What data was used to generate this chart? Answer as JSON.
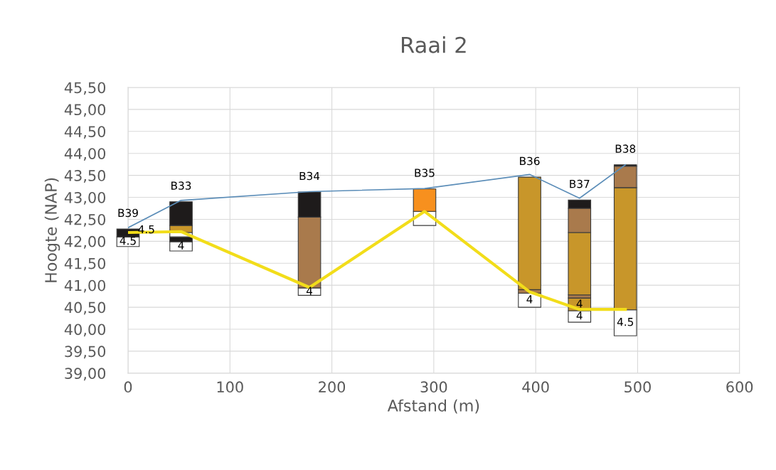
{
  "chart_data": {
    "type": "bar",
    "title": "Raai 2",
    "xlabel": "Afstand (m)",
    "ylabel": "Hoogte (NAP)",
    "x": [
      0,
      52,
      178,
      291,
      394,
      443,
      488
    ],
    "series": [
      {
        "base": [
          41.88,
          41.78,
          40.77,
          42.36,
          40.5,
          40.16,
          39.85
        ],
        "values": [
          0.22,
          0.21,
          0.17,
          0.32,
          0.32,
          0.26,
          0.59
        ],
        "colors": [
          "#ffffff",
          "#ffffff",
          "#ffffff",
          "#ffffff",
          "#ffffff",
          "#ffffff",
          "#ffffff"
        ]
      },
      {
        "base": [
          42.1,
          41.99,
          40.94,
          42.68,
          40.82,
          40.42,
          40.44
        ],
        "values": [
          0.18,
          0.11,
          1.61,
          0.51,
          0.08,
          0.29,
          2.78
        ],
        "colors": [
          "#1e1b1b",
          "#1e1b1b",
          "#a97a4c",
          "#f7901e",
          "#a97a4c",
          "#c8962a",
          "#c8962a"
        ]
      },
      {
        "base": [
          null,
          42.1,
          42.55,
          null,
          40.9,
          40.71,
          43.22
        ],
        "values": [
          null,
          0.1,
          0.57,
          null,
          2.56,
          0.07,
          0.49
        ],
        "colors": [
          null,
          "#ffffff",
          "#1e1b1b",
          null,
          "#c8962a",
          "#a97a4c",
          "#a97a4c"
        ]
      },
      {
        "base": [
          null,
          42.2,
          null,
          null,
          null,
          40.78,
          43.71
        ],
        "values": [
          null,
          0.16,
          null,
          null,
          null,
          1.42,
          0.03
        ],
        "colors": [
          null,
          "#c8962a",
          null,
          null,
          null,
          "#c8962a",
          "#1e1b1b"
        ]
      },
      {
        "base": [
          null,
          42.36,
          null,
          null,
          null,
          42.2,
          null
        ],
        "values": [
          null,
          0.54,
          null,
          null,
          null,
          0.55,
          null
        ],
        "colors": [
          null,
          "#1e1b1b",
          null,
          null,
          null,
          "#a97a4c",
          null
        ]
      },
      {
        "base": [
          null,
          null,
          null,
          null,
          null,
          42.75,
          null
        ],
        "values": [
          null,
          null,
          null,
          null,
          null,
          0.19,
          null
        ],
        "colors": [
          null,
          null,
          null,
          null,
          null,
          "#1e1b1b",
          null
        ]
      },
      {
        "type": "line",
        "x": [
          0,
          52,
          178,
          291,
          394,
          443,
          488
        ],
        "values": [
          42.2,
          42.22,
          40.95,
          42.68,
          40.85,
          40.45,
          40.45
        ],
        "color": "#f2dd1a"
      },
      {
        "type": "line",
        "x": [
          0,
          52,
          178,
          291,
          394,
          443,
          488
        ],
        "values": [
          42.31,
          42.93,
          43.13,
          43.2,
          43.52,
          42.98,
          43.74
        ],
        "color": "#5b8db8"
      }
    ],
    "annotations": [
      {
        "text": "B39",
        "x": 0,
        "y": 42.28
      },
      {
        "text": "B33",
        "x": 52,
        "y": 42.9
      },
      {
        "text": "B34",
        "x": 178,
        "y": 43.12
      },
      {
        "text": "B35",
        "x": 291,
        "y": 43.19
      },
      {
        "text": "B36",
        "x": 394,
        "y": 43.46
      },
      {
        "text": "B37",
        "x": 443,
        "y": 42.94
      },
      {
        "text": "B38",
        "x": 488,
        "y": 43.74
      },
      {
        "text": "4.5",
        "x": 0,
        "y": 41.88
      },
      {
        "text": "4.5",
        "x": 18,
        "y": 42.25
      },
      {
        "text": "4",
        "x": 52,
        "y": 41.78
      },
      {
        "text": "4",
        "x": 178,
        "y": 40.85
      },
      {
        "text": "4",
        "x": 394,
        "y": 40.5
      },
      {
        "text": "4",
        "x": 443,
        "y": 40.56
      },
      {
        "text": "4",
        "x": 443,
        "y": 40.16
      },
      {
        "text": "4.5",
        "x": 488,
        "y": 39.85
      }
    ],
    "xlim": [
      0,
      600
    ],
    "xticks": [
      0,
      100,
      200,
      300,
      400,
      500,
      600
    ],
    "ylim": [
      39,
      45.5
    ],
    "yticks": [
      {
        "value": 39,
        "label": "39,00"
      },
      {
        "value": 39.5,
        "label": "39,50"
      },
      {
        "value": 40,
        "label": "40,00"
      },
      {
        "value": 40.5,
        "label": "40,50"
      },
      {
        "value": 41,
        "label": "41,00"
      },
      {
        "value": 41.5,
        "label": "41,50"
      },
      {
        "value": 42,
        "label": "42,00"
      },
      {
        "value": 42.5,
        "label": "42,50"
      },
      {
        "value": 43,
        "label": "43,00"
      },
      {
        "value": 43.5,
        "label": "43,50"
      },
      {
        "value": 44,
        "label": "44,00"
      },
      {
        "value": 44.5,
        "label": "44,50"
      },
      {
        "value": 45,
        "label": "45,00"
      },
      {
        "value": 45.5,
        "label": "45,50"
      }
    ],
    "grid": true,
    "legend": false
  }
}
